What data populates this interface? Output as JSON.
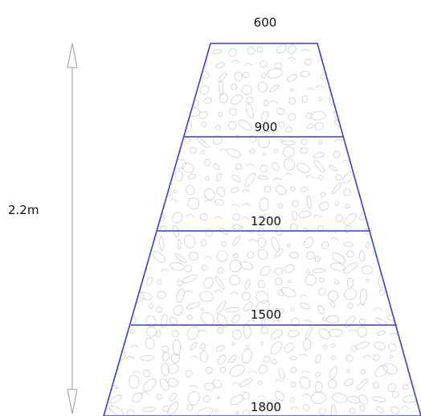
{
  "dimension": {
    "height_label": "2.2m"
  },
  "layers": [
    {
      "width_label": "600"
    },
    {
      "width_label": "900"
    },
    {
      "width_label": "1200"
    },
    {
      "width_label": "1500"
    },
    {
      "width_label": "1800"
    }
  ],
  "colors": {
    "outline": "#3a3ad8",
    "dimension_line": "#9a9a9a",
    "texture": "#c9cdd6",
    "text": "#111111"
  }
}
